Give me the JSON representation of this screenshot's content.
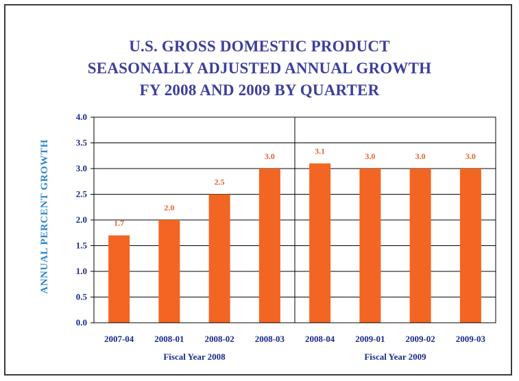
{
  "chart_data": {
    "type": "bar",
    "title_lines": [
      "U.S. GROSS DOMESTIC PRODUCT",
      "SEASONALLY ADJUSTED ANNUAL GROWTH",
      "FY 2008 AND 2009 BY QUARTER"
    ],
    "ylabel": "ANNUAL PERCENT GROWTH",
    "xlabel": "",
    "categories": [
      "2007-04",
      "2008-01",
      "2008-02",
      "2008-03",
      "2008-04",
      "2009-01",
      "2009-02",
      "2009-03"
    ],
    "values": [
      1.7,
      2.0,
      2.5,
      3.0,
      3.1,
      3.0,
      3.0,
      3.0
    ],
    "data_labels": [
      "1.7",
      "2.0",
      "2.5",
      "3.0",
      "3.1",
      "3.0",
      "3.0",
      "3.0"
    ],
    "ylim": [
      0,
      4
    ],
    "yticks": [
      "0.0",
      "0.5",
      "1.0",
      "1.5",
      "2.0",
      "2.5",
      "3.0",
      "3.5",
      "4.0"
    ],
    "groups": [
      {
        "label": "Fiscal Year 2008",
        "categories": [
          "2007-04",
          "2008-01",
          "2008-02",
          "2008-03"
        ]
      },
      {
        "label": "Fiscal Year 2009",
        "categories": [
          "2008-04",
          "2009-01",
          "2009-02",
          "2009-03"
        ]
      }
    ],
    "grid": true,
    "legend": "none",
    "colors": {
      "bar": "#f26522",
      "title": "#3d3f9a",
      "ylabel": "#2e86c8",
      "ticks": "#1a2a8a",
      "data_label": "#e8612a"
    }
  }
}
